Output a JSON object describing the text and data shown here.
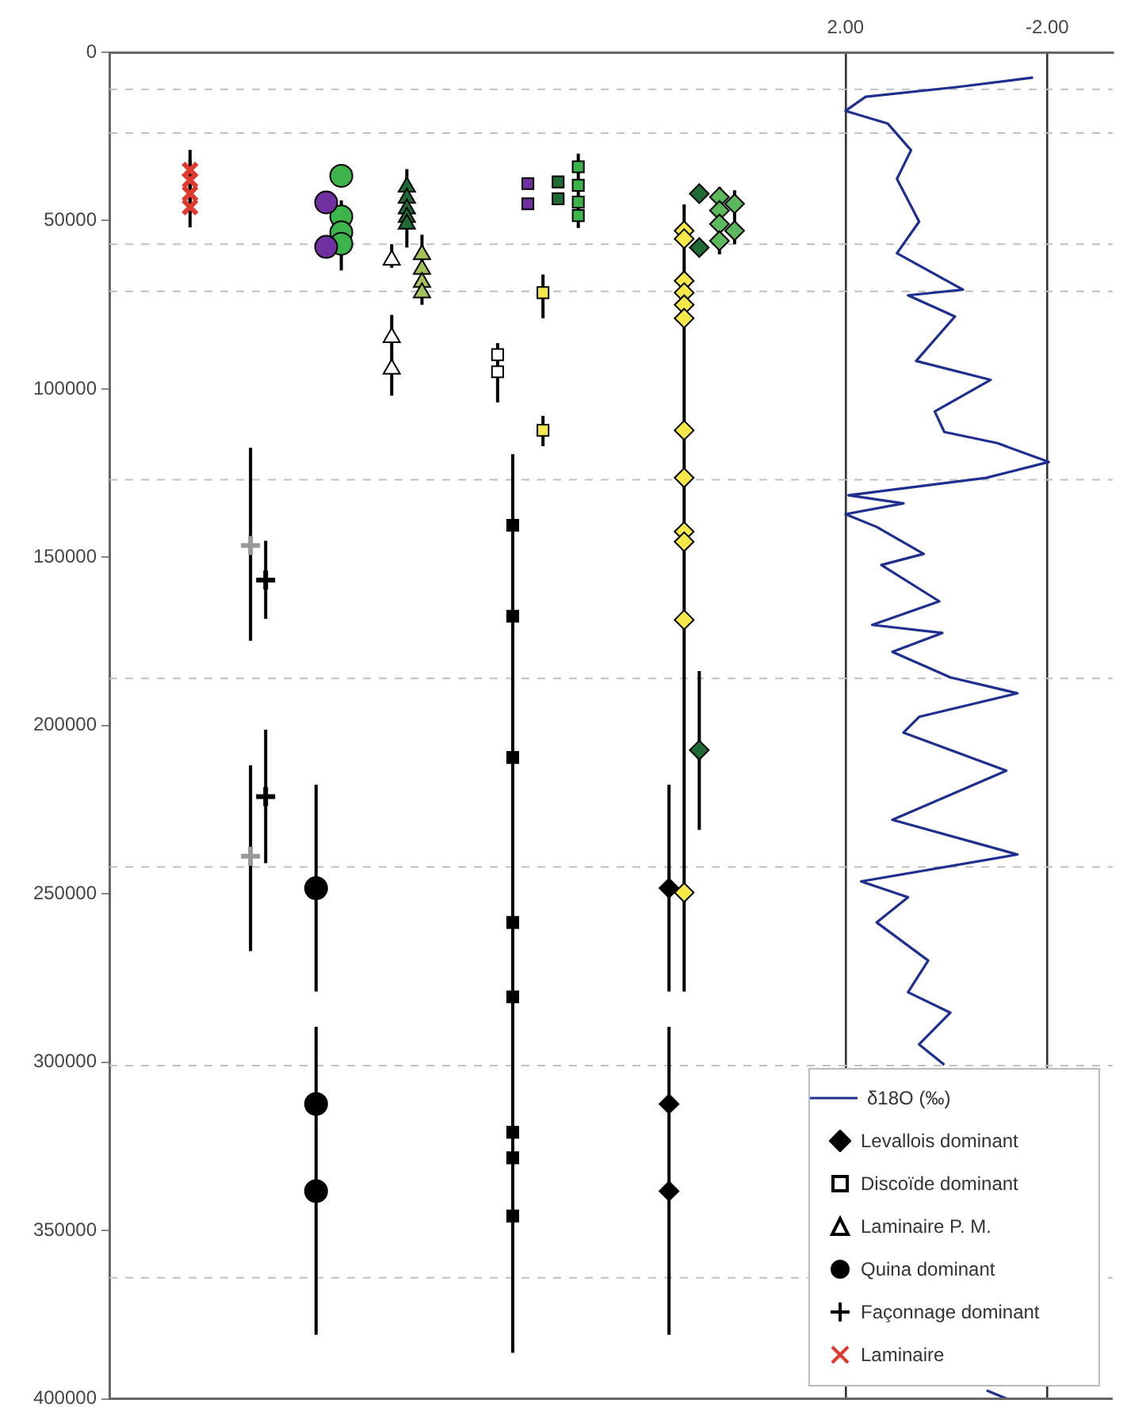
{
  "chart_data": {
    "type": "scatter",
    "xlim": [
      16.6,
      -3.3
    ],
    "xticks": [
      {
        "value": 2,
        "label": "2.00"
      },
      {
        "value": -2,
        "label": "-2.00"
      }
    ],
    "ylim": [
      400000,
      0
    ],
    "yticks": [
      0,
      50000,
      100000,
      150000,
      200000,
      250000,
      300000,
      350000,
      400000
    ],
    "grid": "x",
    "legend": "bottom right",
    "ref_lines": [
      {
        "axis": "y",
        "value": 11000,
        "color": "#c0c0c0",
        "line_style": "dashed"
      },
      {
        "axis": "y",
        "value": 24000,
        "color": "#c0c0c0",
        "line_style": "dashed"
      },
      {
        "axis": "y",
        "value": 57000,
        "color": "#c0c0c0",
        "line_style": "dashed"
      },
      {
        "axis": "y",
        "value": 71000,
        "color": "#c0c0c0",
        "line_style": "dashed"
      },
      {
        "axis": "y",
        "value": 127000,
        "color": "#c0c0c0",
        "line_style": "dashed"
      },
      {
        "axis": "y",
        "value": 186000,
        "color": "#c0c0c0",
        "line_style": "dashed"
      },
      {
        "axis": "y",
        "value": 242000,
        "color": "#c0c0c0",
        "line_style": "dashed"
      },
      {
        "axis": "y",
        "value": 301000,
        "color": "#c0c0c0",
        "line_style": "dashed"
      },
      {
        "axis": "y",
        "value": 364000,
        "color": "#c0c0c0",
        "line_style": "dashed"
      }
    ],
    "series": [
      {
        "name": "δ18O (‰)",
        "type": "line",
        "color": "#1f2f8f",
        "marker": "none",
        "line_style": "solid",
        "x": [
          -1.72,
          -0.23,
          1.6,
          2.0,
          1.16,
          0.7,
          0.98,
          0.54,
          0.98,
          -0.33,
          0.76,
          -0.17,
          0.6,
          -0.88,
          0.23,
          0.04,
          -1.01,
          -2.03,
          -0.79,
          1.94,
          0.85,
          2.0,
          1.38,
          0.45,
          1.29,
          0.14,
          1.47,
          0.08,
          1.07,
          -0.08,
          -1.41,
          0.54,
          0.85,
          -1.19,
          1.07,
          -1.41,
          1.69,
          0.76,
          1.38,
          0.36,
          0.76,
          -0.08,
          0.54,
          0.04,
          null,
          -0.8,
          -1.2
        ],
        "values": [
          7500,
          10300,
          13200,
          17400,
          21200,
          29100,
          37600,
          50300,
          59700,
          70500,
          72200,
          78500,
          91700,
          97300,
          106700,
          112800,
          116100,
          121700,
          126400,
          131600,
          134000,
          137200,
          141000,
          149000,
          152300,
          163100,
          170100,
          172500,
          178100,
          185700,
          190400,
          197400,
          202100,
          213400,
          228000,
          238300,
          246300,
          251000,
          258500,
          269800,
          279200,
          285300,
          294700,
          300800,
          null,
          397500,
          400000
        ]
      },
      {
        "name": "Levallois dominant",
        "color": "#000000",
        "marker": "diamond",
        "x": [
          5.5,
          5.5,
          5.5
        ],
        "values": [
          248300,
          312400,
          338300
        ],
        "errors": [
          [
            217600,
            279000
          ],
          [
            289500,
            381000
          ],
          null
        ]
      },
      {
        "color": "#f7e84a",
        "marker": "diamond",
        "x": [
          5.2,
          5.2,
          5.2,
          5.2,
          5.2,
          5.2,
          5.2,
          5.2,
          5.2,
          5.2,
          5.2,
          5.2
        ],
        "values": [
          53000,
          55400,
          67900,
          71400,
          75000,
          79000,
          112300,
          126400,
          142400,
          145400,
          168600,
          249600
        ],
        "errors": [
          [
            45200,
            279000
          ],
          null,
          null,
          null,
          null,
          null,
          null,
          null,
          null,
          null,
          null,
          null
        ]
      },
      {
        "color": "#1f6b35",
        "marker": "diamond",
        "x": [
          4.9,
          4.9,
          4.9
        ],
        "values": [
          42000,
          58000,
          207300
        ],
        "errors": [
          null,
          null,
          [
            183800,
            231000
          ]
        ]
      },
      {
        "color": "#5cb85c",
        "marker": "diamond",
        "x": [
          4.5,
          4.5,
          4.5,
          4.5,
          4.2,
          4.2
        ],
        "values": [
          43000,
          47000,
          51000,
          56000,
          45000,
          53000
        ],
        "errors": [
          [
            40000,
            60000
          ],
          null,
          null,
          null,
          [
            41000,
            57000
          ],
          null
        ]
      },
      {
        "name": "Discoïde dominant",
        "color": "#ffffff",
        "marker": "square",
        "x": [
          8.9,
          8.9
        ],
        "values": [
          89800,
          94900
        ],
        "errors": [
          [
            86400,
            104000
          ],
          null
        ]
      },
      {
        "color": "#000000",
        "marker": "square",
        "x": [
          8.6,
          8.6,
          8.6,
          8.6,
          8.6,
          8.6,
          8.6,
          8.6
        ],
        "values": [
          140500,
          167500,
          209500,
          258500,
          280600,
          320800,
          328400,
          345700
        ],
        "errors": [
          [
            119400,
            386300
          ],
          null,
          null,
          null,
          null,
          null,
          null,
          null
        ]
      },
      {
        "color": "#7030a0",
        "marker": "square",
        "x": [
          8.3,
          8.3
        ],
        "values": [
          39000,
          45000
        ]
      },
      {
        "color": "#f7e84a",
        "marker": "square",
        "x": [
          8.0,
          8.0
        ],
        "values": [
          71400,
          112300
        ],
        "errors": [
          [
            66000,
            79000
          ],
          [
            108000,
            117000
          ]
        ]
      },
      {
        "color": "#1f6b35",
        "marker": "square",
        "x": [
          7.7,
          7.7
        ],
        "values": [
          38500,
          43500
        ]
      },
      {
        "color": "#3cb44b",
        "marker": "square",
        "x": [
          7.3,
          7.3,
          7.3,
          7.3
        ],
        "values": [
          34000,
          39500,
          44500,
          48500
        ],
        "errors": [
          [
            30100,
            52200
          ],
          null,
          null,
          null
        ]
      },
      {
        "name": "Laminaire P. M.",
        "color": "#ffffff",
        "marker": "triangle",
        "x": [
          11.0,
          11.0,
          11.0
        ],
        "values": [
          61700,
          84700,
          94100
        ],
        "errors": [
          [
            57000,
            64000
          ],
          [
            78000,
            102000
          ],
          null
        ]
      },
      {
        "color": "#1f6b35",
        "marker": "triangle",
        "x": [
          10.7,
          10.7,
          10.7,
          10.7,
          10.7
        ],
        "values": [
          40000,
          43300,
          46500,
          49000,
          51000
        ],
        "errors": [
          [
            34700,
            58000
          ],
          null,
          null,
          null,
          null
        ]
      },
      {
        "color": "#a5c25a",
        "marker": "triangle",
        "x": [
          10.4,
          10.4,
          10.4,
          10.4
        ],
        "values": [
          60100,
          64400,
          68300,
          71400
        ],
        "errors": [
          [
            54200,
            75000
          ],
          null,
          null,
          null
        ]
      },
      {
        "name": "Quina dominant",
        "color": "#000000",
        "marker": "circle",
        "x": [
          12.5,
          12.5,
          12.5
        ],
        "values": [
          248300,
          312400,
          338300
        ],
        "errors": [
          [
            217600,
            279000
          ],
          [
            289500,
            381000
          ],
          null
        ]
      },
      {
        "color": "#7030a0",
        "marker": "circle",
        "x": [
          12.3,
          12.3
        ],
        "values": [
          44600,
          57800
        ]
      },
      {
        "color": "#3cb44b",
        "marker": "circle",
        "x": [
          12.0,
          12.0,
          12.0,
          12.0
        ],
        "values": [
          36700,
          48800,
          53500,
          56900
        ],
        "errors": [
          null,
          null,
          null,
          [
            44000,
            64800
          ]
        ]
      },
      {
        "name": "Façonnage dominant",
        "color": "#000000",
        "marker": "cross",
        "x": [
          13.5,
          13.5
        ],
        "values": [
          156800,
          221100
        ],
        "errors": [
          [
            145100,
            168300
          ],
          [
            201200,
            240900
          ]
        ]
      },
      {
        "color": "#999999",
        "marker": "cross",
        "x": [
          13.8,
          13.8
        ],
        "values": [
          146500,
          238800
        ],
        "errors": [
          [
            117500,
            174800
          ],
          [
            211800,
            267000
          ]
        ]
      },
      {
        "name": "Laminaire",
        "color": "#e03a2f",
        "marker": "x",
        "x": [
          15.0,
          15.0,
          15.0,
          15.0
        ],
        "values": [
          35000,
          38000,
          42000,
          46000
        ],
        "errors": [
          6000,
          6000,
          6000,
          6000
        ]
      }
    ]
  }
}
